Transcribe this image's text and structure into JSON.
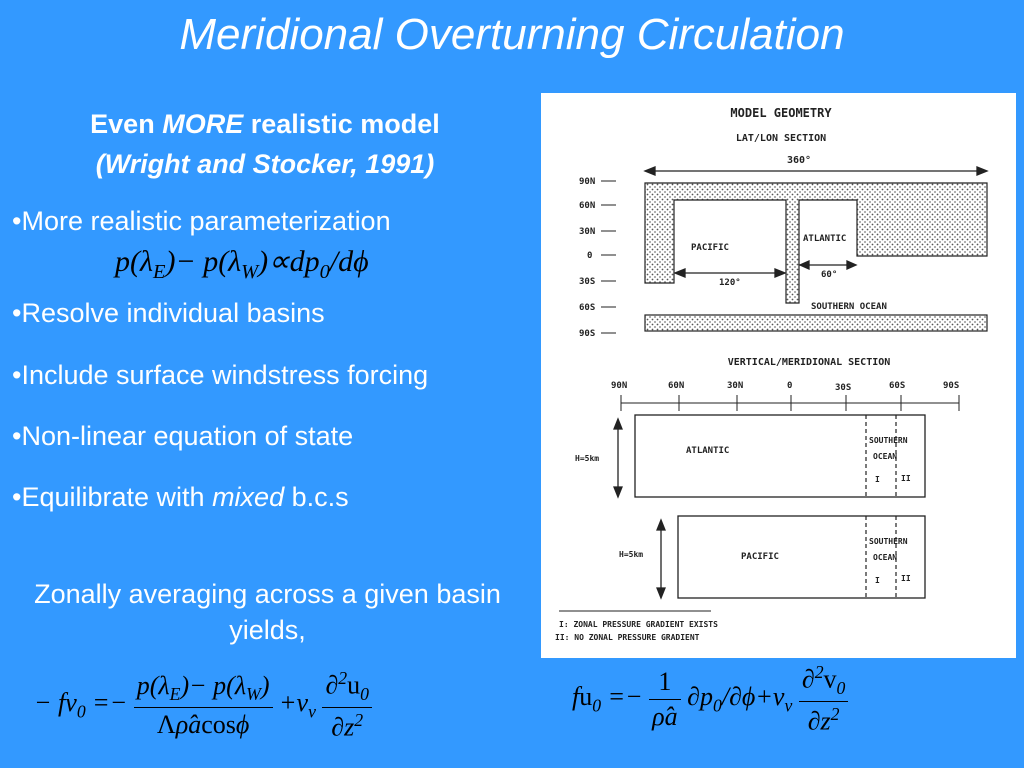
{
  "slide": {
    "title": "Meridional Overturning Circulation",
    "heading": {
      "line1_pre": "Even",
      "line1_em": "MORE",
      "line1_post": "realistic model",
      "line2": "(Wright and Stocker, 1991)"
    },
    "bullets": [
      "•More realistic parameterization",
      "•Resolve individual basins",
      "•Include surface windstress forcing",
      "•Non-linear equation of state",
      "•Equilibrate with "
    ],
    "bullet5_em": "mixed",
    "bullet5_post": " b.c.s",
    "zonal_text": "Zonally averaging across a  given basin yields,"
  },
  "figure": {
    "title": "MODEL GEOMETRY",
    "latlon_title": "LAT/LON SECTION",
    "span_360": "360°",
    "lat_labels": [
      "90N",
      "60N",
      "30N",
      "0",
      "30S",
      "60S",
      "90S"
    ],
    "pacific": "PACIFIC",
    "atlantic": "ATLANTIC",
    "width_120": "120°",
    "width_60": "60°",
    "southern_ocean": "SOUTHERN OCEAN",
    "vertical_title": "VERTICAL/MERIDIONAL SECTION",
    "vert_lat_labels": [
      "90N",
      "60N",
      "30N",
      "0",
      "30S",
      "60S",
      "90S"
    ],
    "depth": "H=5km",
    "atlantic_box": "ATLANTIC",
    "pacific_box": "PACIFIC",
    "southern": "SOUTHERN",
    "ocean": "OCEAN",
    "zone_i": "I",
    "zone_ii": "II",
    "legend_i": "I: ZONAL PRESSURE GRADIENT EXISTS",
    "legend_ii": "II: NO ZONAL PRESSURE GRADIENT"
  }
}
